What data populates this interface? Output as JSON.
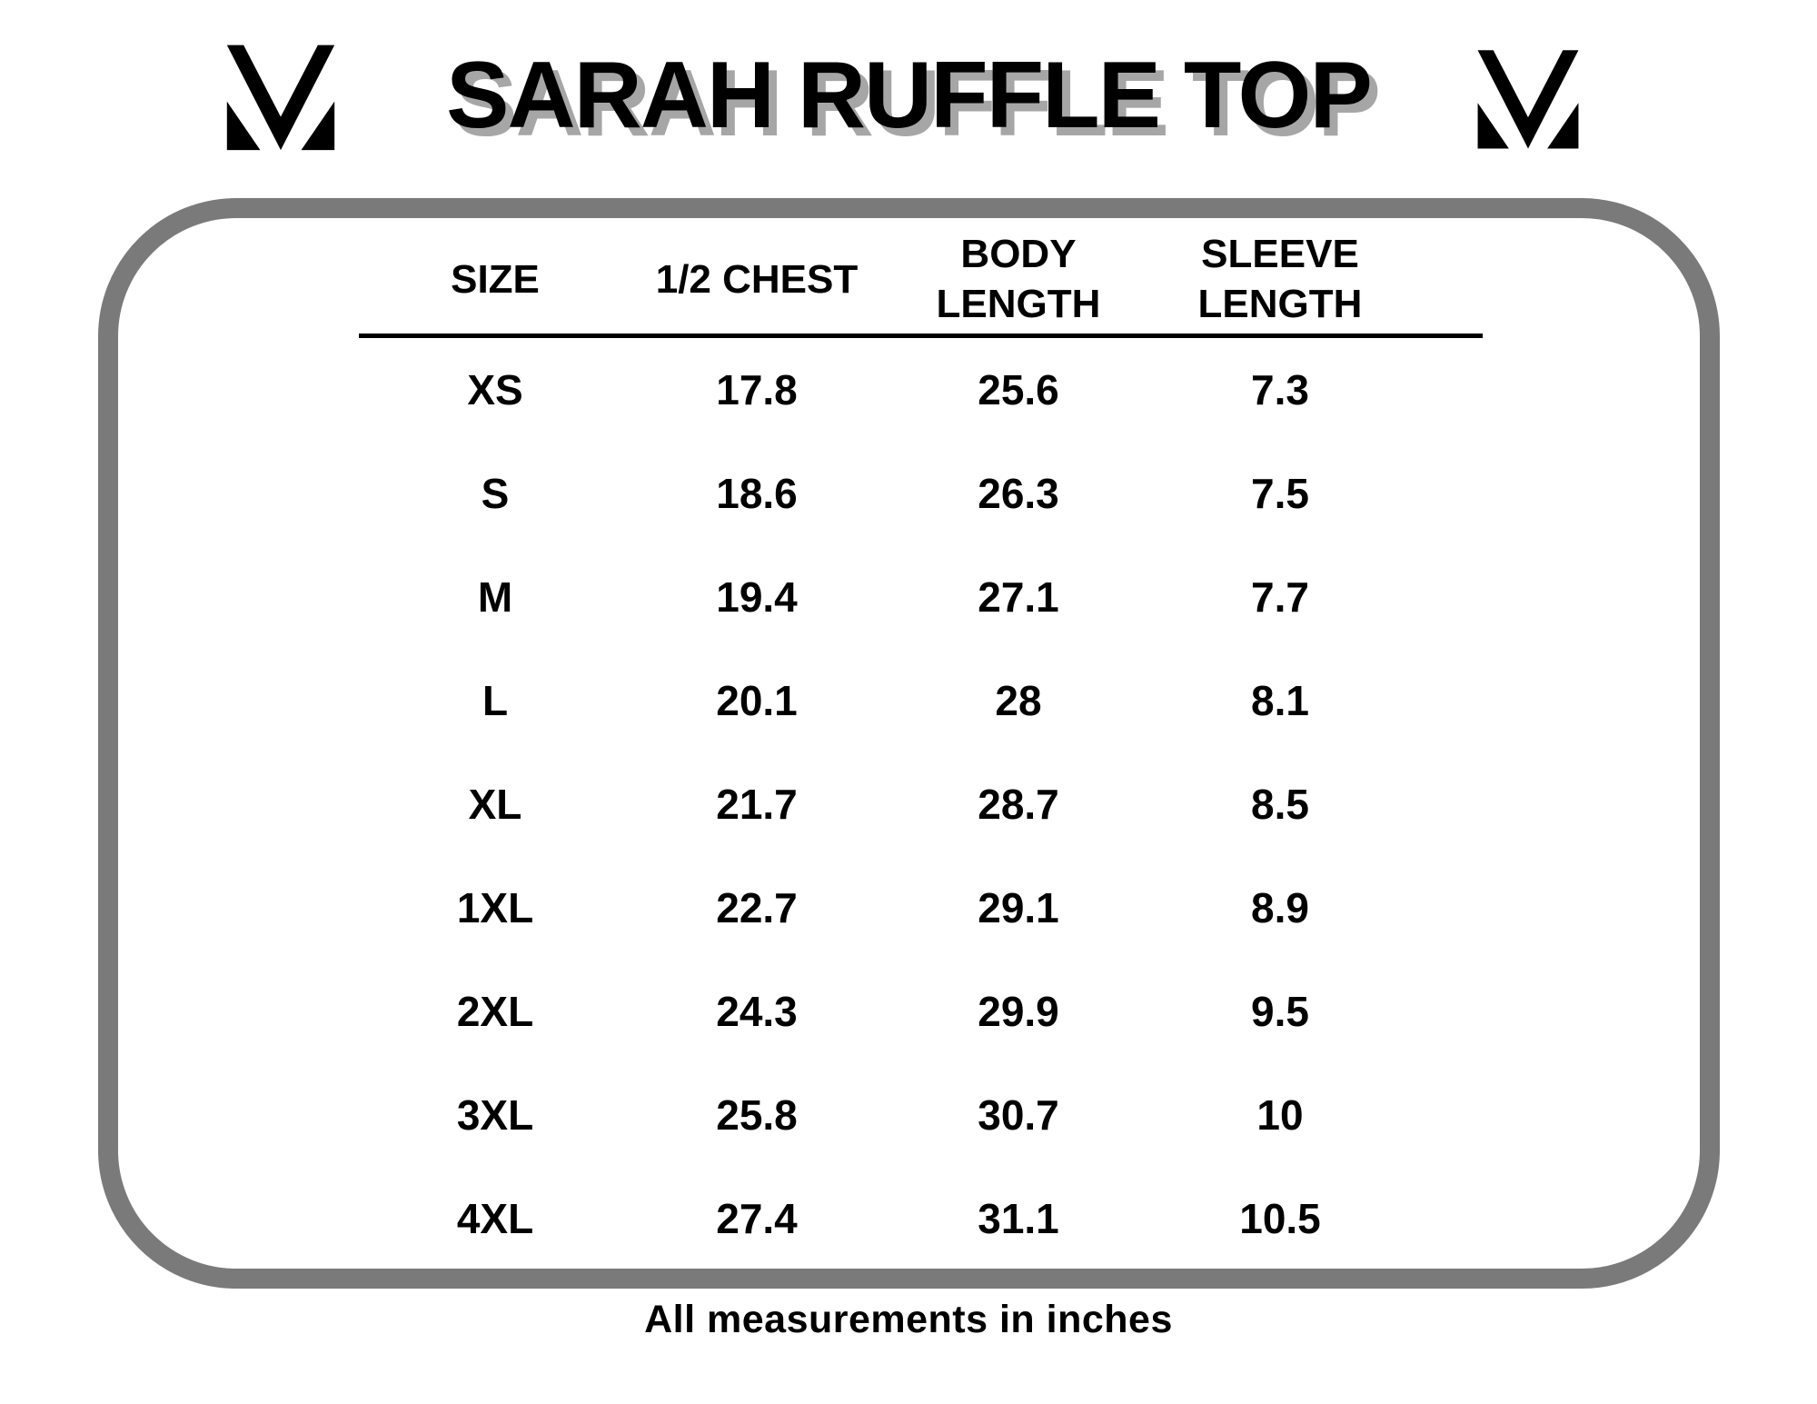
{
  "chart_data": {
    "type": "table",
    "title": "SARAH RUFFLE TOP",
    "columns": [
      "SIZE",
      "1/2 CHEST",
      "BODY LENGTH",
      "SLEEVE LENGTH"
    ],
    "column_display": [
      "SIZE",
      "1/2 CHEST",
      "BODY\nLENGTH",
      "SLEEVE\nLENGTH"
    ],
    "rows": [
      [
        "XS",
        "17.8",
        "25.6",
        "7.3"
      ],
      [
        "S",
        "18.6",
        "26.3",
        "7.5"
      ],
      [
        "M",
        "19.4",
        "27.1",
        "7.7"
      ],
      [
        "L",
        "20.1",
        "28",
        "8.1"
      ],
      [
        "XL",
        "21.7",
        "28.7",
        "8.5"
      ],
      [
        "1XL",
        "22.7",
        "29.1",
        "8.9"
      ],
      [
        "2XL",
        "24.3",
        "29.9",
        "9.5"
      ],
      [
        "3XL",
        "25.8",
        "30.7",
        "10"
      ],
      [
        "4XL",
        "27.4",
        "31.1",
        "10.5"
      ]
    ],
    "footnote": "All measurements in inches",
    "units": "inches"
  },
  "logo": {
    "icon": "mv-monogram-icon"
  },
  "colors": {
    "frame_border": "#7a7a7a",
    "title_shadow": "#a6a6a6",
    "text": "#000000",
    "rule": "#000000",
    "background": "#ffffff"
  }
}
